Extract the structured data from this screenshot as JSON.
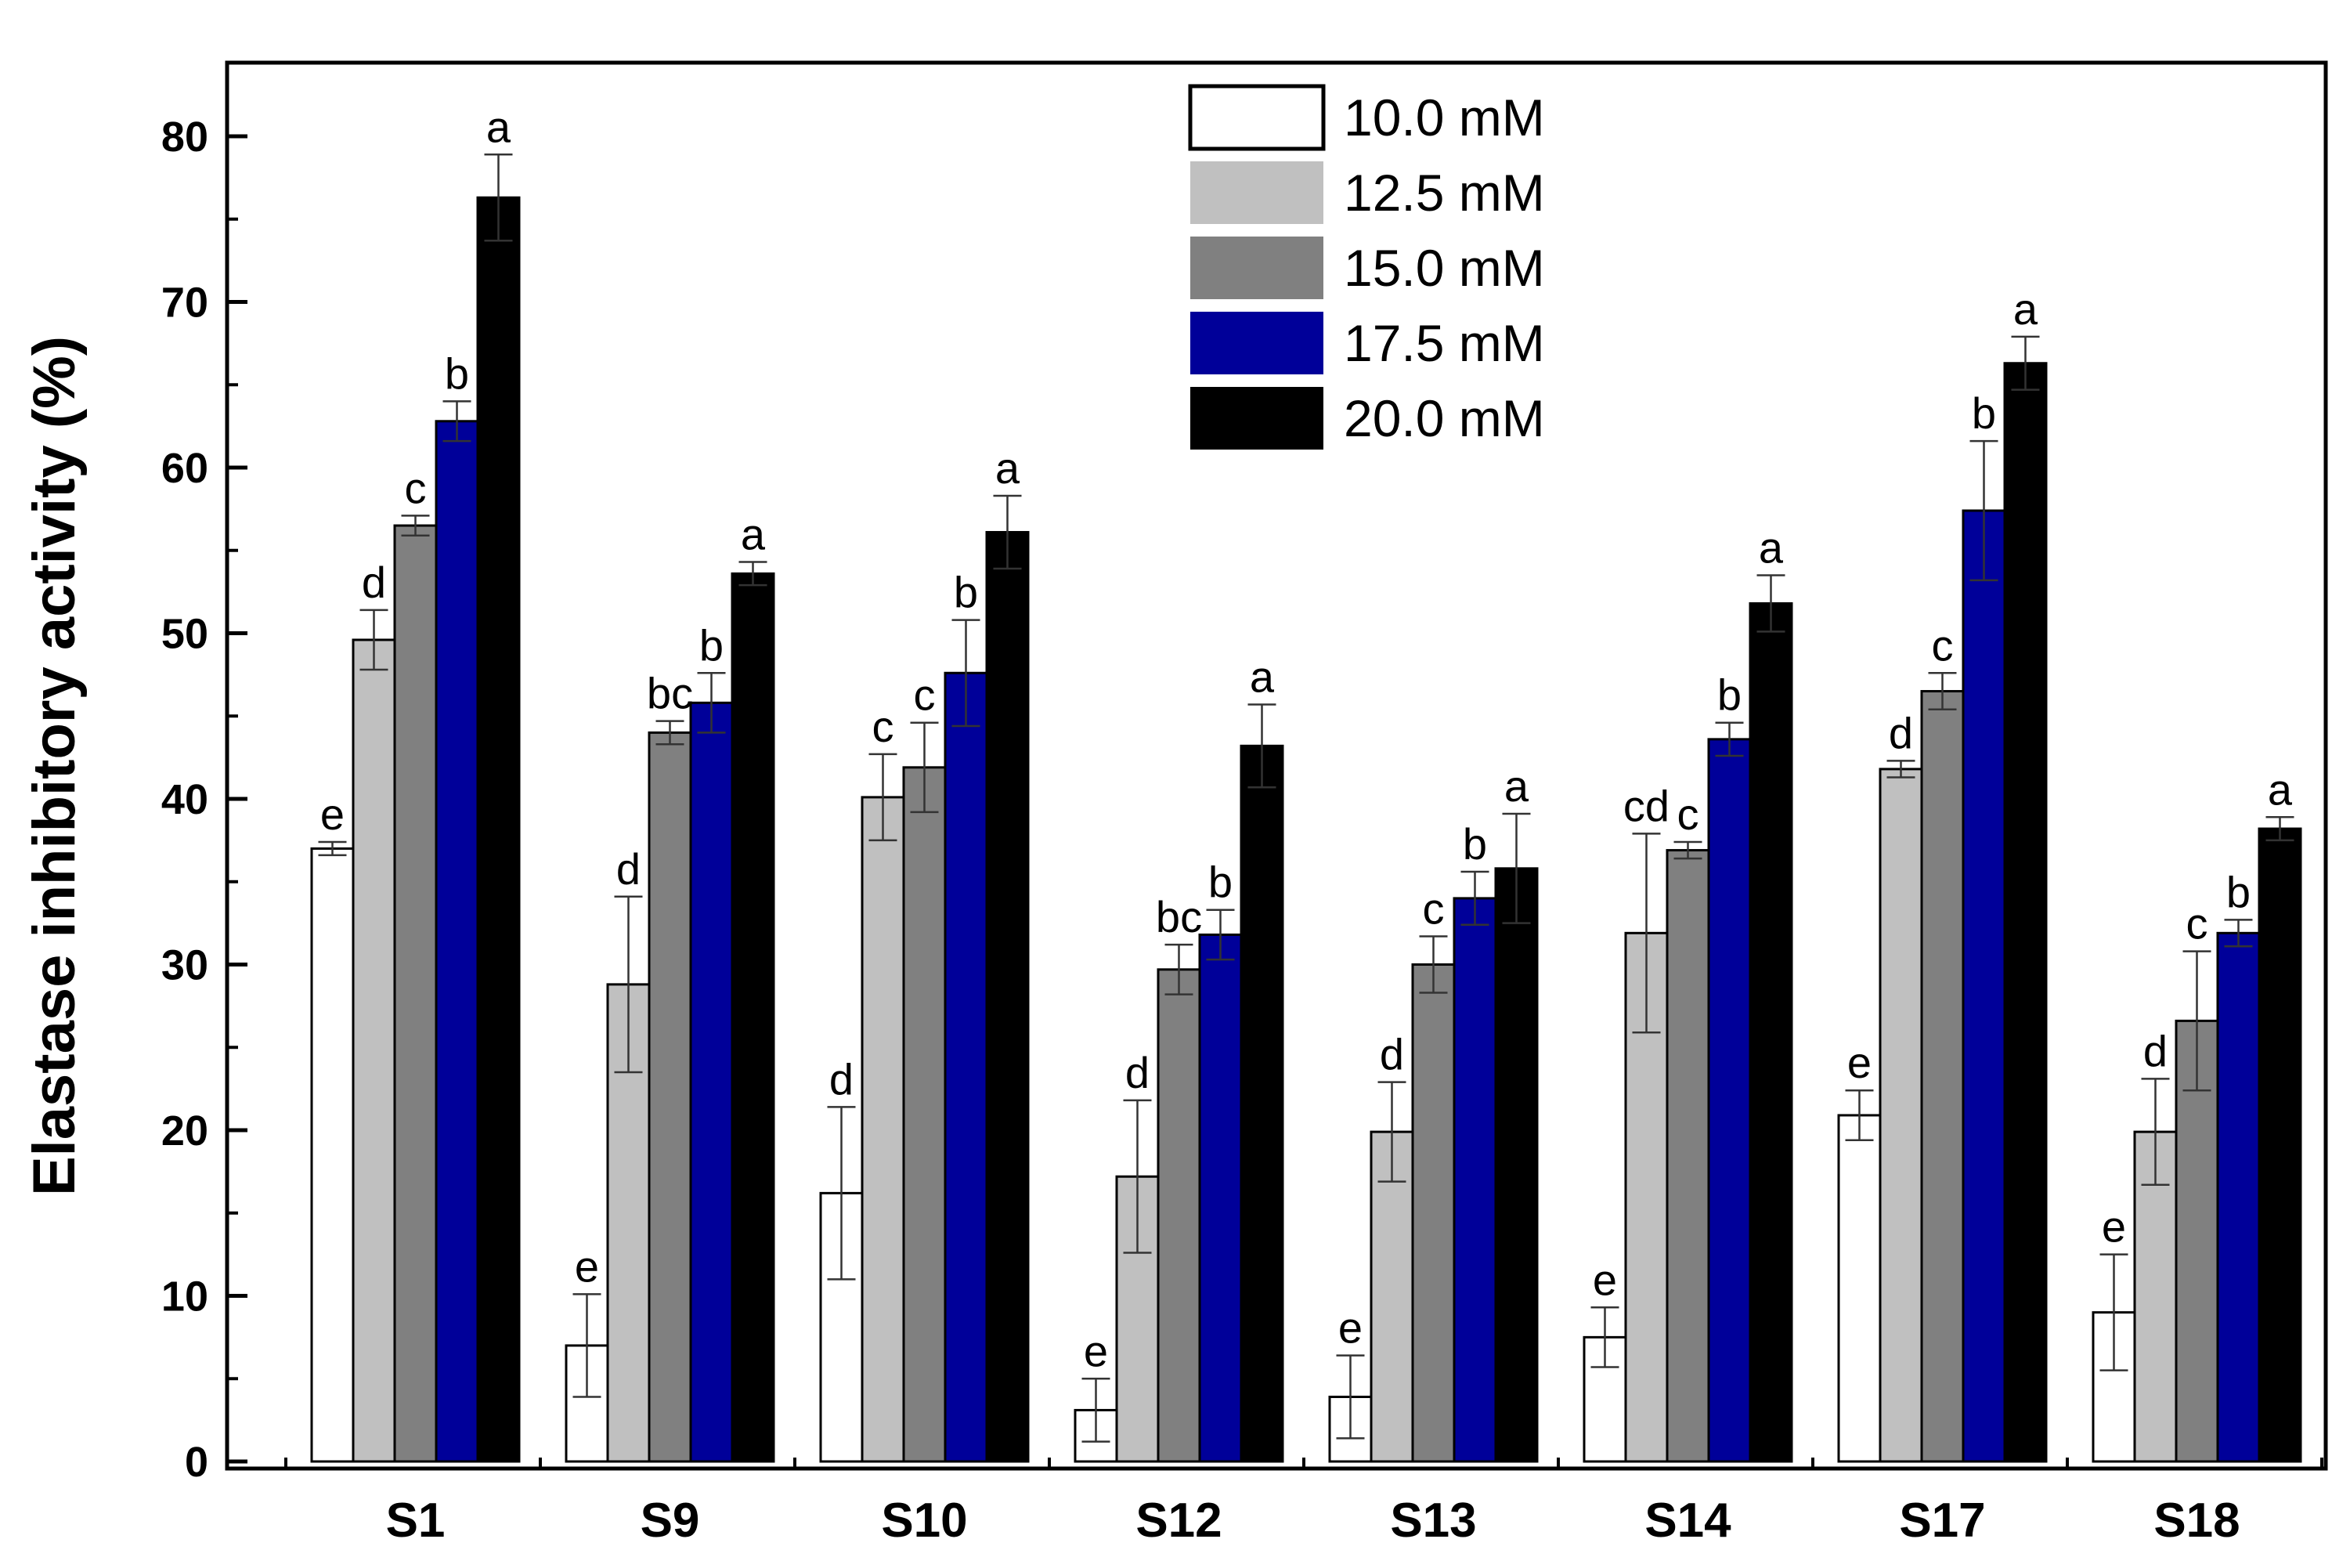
{
  "chart_data": {
    "type": "bar",
    "title": "",
    "xlabel": "",
    "ylabel": "Elastase inhibitory activity (%)",
    "ylim": [
      0,
      85
    ],
    "yticks": [
      0,
      10,
      20,
      30,
      40,
      50,
      60,
      70,
      80
    ],
    "ytick_labels": [
      "0",
      "10",
      "20",
      "30",
      "40",
      "50",
      "60",
      "70",
      "80"
    ],
    "grid": false,
    "legend_position": "top-center",
    "categories": [
      "S1",
      "S9",
      "S10",
      "S12",
      "S13",
      "S14",
      "S17",
      "S18"
    ],
    "series": [
      {
        "name": "10.0 mM",
        "color": "#ffffff",
        "values": [
          37.0,
          7.0,
          16.2,
          3.1,
          3.9,
          7.5,
          20.9,
          9.0
        ],
        "errors": [
          0.4,
          3.1,
          5.2,
          1.9,
          2.5,
          1.8,
          1.5,
          3.5
        ],
        "labels": [
          "e",
          "e",
          "d",
          "e",
          "e",
          "e",
          "e",
          "e"
        ]
      },
      {
        "name": "12.5 mM",
        "color": "#c0c0c0",
        "values": [
          49.6,
          28.8,
          40.1,
          17.2,
          19.9,
          31.9,
          41.8,
          19.9
        ],
        "errors": [
          1.8,
          5.3,
          2.6,
          4.6,
          3.0,
          6.0,
          0.5,
          3.2
        ],
        "labels": [
          "d",
          "d",
          "c",
          "d",
          "d",
          "cd",
          "d",
          "d"
        ]
      },
      {
        "name": "15.0 mM",
        "color": "#808080",
        "values": [
          56.5,
          44.0,
          41.9,
          29.7,
          30.0,
          36.9,
          46.5,
          26.6
        ],
        "errors": [
          0.6,
          0.7,
          2.7,
          1.5,
          1.7,
          0.5,
          1.1,
          4.2
        ],
        "labels": [
          "c",
          "bc",
          "c",
          "bc",
          "c",
          "c",
          "c",
          "c"
        ]
      },
      {
        "name": "17.5 mM",
        "color": "#000099",
        "values": [
          62.8,
          45.8,
          47.6,
          31.8,
          34.0,
          43.6,
          57.4,
          31.9
        ],
        "errors": [
          1.2,
          1.8,
          3.2,
          1.5,
          1.6,
          1.0,
          4.2,
          0.8
        ],
        "labels": [
          "b",
          "b",
          "b",
          "b",
          "b",
          "b",
          "b",
          "b"
        ]
      },
      {
        "name": "20.0 mM",
        "color": "#000000",
        "values": [
          76.3,
          53.6,
          56.1,
          43.2,
          35.8,
          51.8,
          66.3,
          38.2
        ],
        "errors": [
          2.6,
          0.7,
          2.2,
          2.5,
          3.3,
          1.7,
          1.6,
          0.7
        ],
        "labels": [
          "a",
          "a",
          "a",
          "a",
          "a",
          "a",
          "a",
          "a"
        ]
      }
    ]
  }
}
